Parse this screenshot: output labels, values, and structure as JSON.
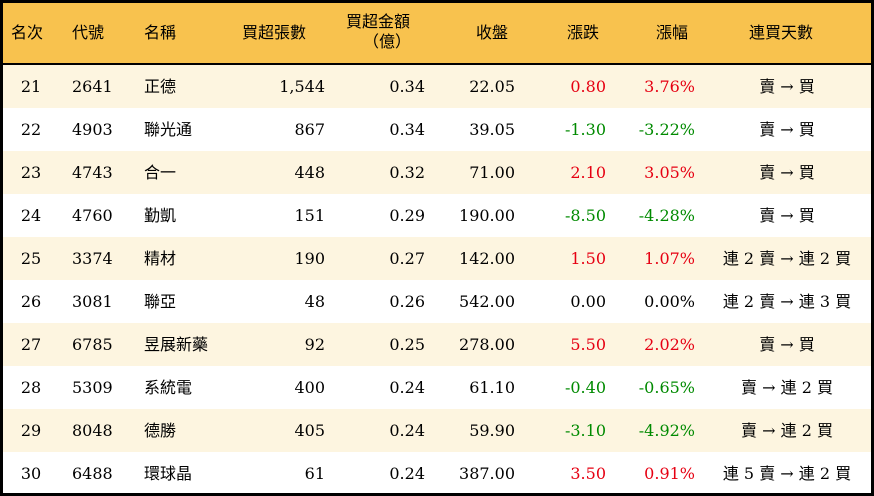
{
  "colors": {
    "header_bg": "#F8C24E",
    "row_alt": "#FDF5E0",
    "up": "#E60012",
    "down": "#008A00"
  },
  "headers": {
    "rank": "名次",
    "code": "代號",
    "name": "名稱",
    "lots": "買超張數",
    "amount1": "買超金額",
    "amount2": "（億）",
    "close": "收盤",
    "change": "漲跌",
    "pct": "漲幅",
    "days": "連買天數"
  },
  "rows": [
    {
      "rank": "21",
      "code": "2641",
      "name": "正德",
      "lots": "1,544",
      "amount": "0.34",
      "close": "22.05",
      "change": "0.80",
      "pct": "3.76%",
      "days": "賣 → 買",
      "dir": "up"
    },
    {
      "rank": "22",
      "code": "4903",
      "name": "聯光通",
      "lots": "867",
      "amount": "0.34",
      "close": "39.05",
      "change": "-1.30",
      "pct": "-3.22%",
      "days": "賣 → 買",
      "dir": "down"
    },
    {
      "rank": "23",
      "code": "4743",
      "name": "合一",
      "lots": "448",
      "amount": "0.32",
      "close": "71.00",
      "change": "2.10",
      "pct": "3.05%",
      "days": "賣 → 買",
      "dir": "up"
    },
    {
      "rank": "24",
      "code": "4760",
      "name": "勤凱",
      "lots": "151",
      "amount": "0.29",
      "close": "190.00",
      "change": "-8.50",
      "pct": "-4.28%",
      "days": "賣 → 買",
      "dir": "down"
    },
    {
      "rank": "25",
      "code": "3374",
      "name": "精材",
      "lots": "190",
      "amount": "0.27",
      "close": "142.00",
      "change": "1.50",
      "pct": "1.07%",
      "days": "連 2 賣 → 連 2 買",
      "dir": "up"
    },
    {
      "rank": "26",
      "code": "3081",
      "name": "聯亞",
      "lots": "48",
      "amount": "0.26",
      "close": "542.00",
      "change": "0.00",
      "pct": "0.00%",
      "days": "連 2 賣 → 連 3 買",
      "dir": "flat"
    },
    {
      "rank": "27",
      "code": "6785",
      "name": "昱展新藥",
      "lots": "92",
      "amount": "0.25",
      "close": "278.00",
      "change": "5.50",
      "pct": "2.02%",
      "days": "賣 → 買",
      "dir": "up"
    },
    {
      "rank": "28",
      "code": "5309",
      "name": "系統電",
      "lots": "400",
      "amount": "0.24",
      "close": "61.10",
      "change": "-0.40",
      "pct": "-0.65%",
      "days": "賣 → 連 2 買",
      "dir": "down"
    },
    {
      "rank": "29",
      "code": "8048",
      "name": "德勝",
      "lots": "405",
      "amount": "0.24",
      "close": "59.90",
      "change": "-3.10",
      "pct": "-4.92%",
      "days": "賣 → 連 2 買",
      "dir": "down"
    },
    {
      "rank": "30",
      "code": "6488",
      "name": "環球晶",
      "lots": "61",
      "amount": "0.24",
      "close": "387.00",
      "change": "3.50",
      "pct": "0.91%",
      "days": "連 5 賣 → 連 2 買",
      "dir": "up"
    }
  ]
}
